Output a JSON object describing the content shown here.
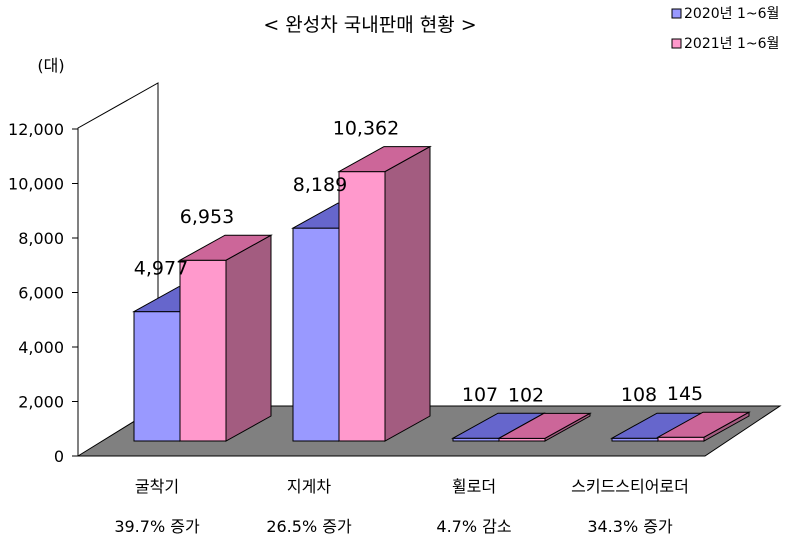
{
  "chart_data": {
    "type": "bar",
    "title": "< 완성차 국내판매 현황 >",
    "ylabel": "(대)",
    "ylim": [
      0,
      12000
    ],
    "yticks": [
      0,
      2000,
      4000,
      6000,
      8000,
      10000,
      12000
    ],
    "ytick_labels": [
      "0",
      "2,000",
      "4,000",
      "6,000",
      "8,000",
      "10,000",
      "12,000"
    ],
    "categories": [
      "굴착기",
      "지게차",
      "휠로더",
      "스키드스티어로더"
    ],
    "change_notes": [
      "39.7% 증가",
      "26.5% 증가",
      "4.7% 감소",
      "34.3% 증가"
    ],
    "series": [
      {
        "name": "2020년 1~6월",
        "values": [
          4977,
          8189,
          107,
          108
        ],
        "labels": [
          "4,977",
          "8,189",
          "107",
          "108"
        ],
        "color": "#9999ff",
        "top_color": "#6666cc",
        "side_color": "#5a5aa8"
      },
      {
        "name": "2021년 1~6월",
        "values": [
          6953,
          10362,
          102,
          145
        ],
        "labels": [
          "6,953",
          "10,362",
          "102",
          "145"
        ],
        "color": "#ff99cc",
        "top_color": "#cc6699",
        "side_color": "#a35c80"
      }
    ],
    "legend_position": "top-right",
    "grid": false,
    "floor_color": "#808080",
    "wall_color": "#ffffff"
  }
}
